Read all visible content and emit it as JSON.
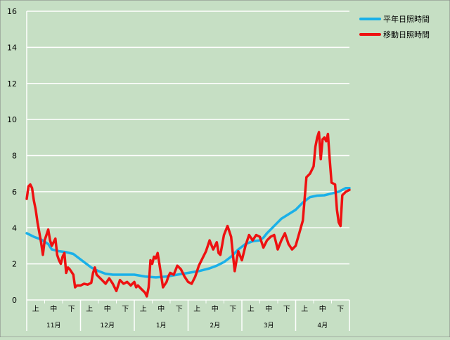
{
  "chart_data": {
    "type": "line",
    "title": "",
    "xlabel": "",
    "ylabel": "",
    "ylim": [
      0,
      16
    ],
    "yticks": [
      0,
      2,
      4,
      6,
      8,
      10,
      12,
      14,
      16
    ],
    "grid": true,
    "legend_position": "top-right",
    "months": [
      "11月",
      "12月",
      "1月",
      "2月",
      "3月",
      "4月"
    ],
    "decades": [
      "上",
      "中",
      "下"
    ],
    "series": [
      {
        "name": "平年日照時間",
        "color": "#1ab0e8",
        "points": [
          [
            0,
            3.7
          ],
          [
            2,
            3.5
          ],
          [
            4,
            3.35
          ],
          [
            6,
            3.1
          ],
          [
            7,
            2.8
          ],
          [
            9,
            2.7
          ],
          [
            11,
            2.65
          ],
          [
            13,
            2.55
          ],
          [
            14,
            2.4
          ],
          [
            16,
            2.1
          ],
          [
            18,
            1.8
          ],
          [
            20,
            1.6
          ],
          [
            22,
            1.45
          ],
          [
            24,
            1.4
          ],
          [
            27,
            1.4
          ],
          [
            30,
            1.4
          ],
          [
            33,
            1.3
          ],
          [
            36,
            1.25
          ],
          [
            39,
            1.3
          ],
          [
            42,
            1.4
          ],
          [
            45,
            1.5
          ],
          [
            48,
            1.6
          ],
          [
            51,
            1.75
          ],
          [
            53,
            1.9
          ],
          [
            55,
            2.1
          ],
          [
            57,
            2.4
          ],
          [
            59,
            2.8
          ],
          [
            61,
            3.1
          ],
          [
            63,
            3.25
          ],
          [
            65,
            3.3
          ],
          [
            66,
            3.45
          ],
          [
            67,
            3.7
          ],
          [
            69,
            4.1
          ],
          [
            71,
            4.5
          ],
          [
            73,
            4.75
          ],
          [
            75,
            5.0
          ],
          [
            77,
            5.4
          ],
          [
            79,
            5.7
          ],
          [
            81,
            5.78
          ],
          [
            83,
            5.8
          ],
          [
            85,
            5.9
          ],
          [
            87,
            6.0
          ],
          [
            89,
            6.2
          ],
          [
            90,
            6.2
          ]
        ]
      },
      {
        "name": "移動日照時間",
        "color": "#ee1111",
        "points": [
          [
            0,
            5.6
          ],
          [
            0.5,
            6.3
          ],
          [
            1,
            6.4
          ],
          [
            1.5,
            6.2
          ],
          [
            2,
            5.5
          ],
          [
            2.5,
            5.0
          ],
          [
            3,
            4.3
          ],
          [
            4,
            3.2
          ],
          [
            4.5,
            2.5
          ],
          [
            5,
            3.3
          ],
          [
            6,
            3.9
          ],
          [
            6.5,
            3.3
          ],
          [
            7,
            3.0
          ],
          [
            8,
            3.4
          ],
          [
            8.5,
            2.5
          ],
          [
            9,
            2.2
          ],
          [
            9.5,
            2.0
          ],
          [
            10,
            2.4
          ],
          [
            10.5,
            2.6
          ],
          [
            11,
            1.5
          ],
          [
            11.5,
            1.8
          ],
          [
            12,
            1.7
          ],
          [
            13,
            1.4
          ],
          [
            13.5,
            0.7
          ],
          [
            14,
            0.8
          ],
          [
            15,
            0.8
          ],
          [
            16,
            0.9
          ],
          [
            17,
            0.85
          ],
          [
            18,
            0.95
          ],
          [
            18.5,
            1.5
          ],
          [
            19,
            1.8
          ],
          [
            19.5,
            1.4
          ],
          [
            20,
            1.3
          ],
          [
            21,
            1.1
          ],
          [
            22,
            0.9
          ],
          [
            23,
            1.2
          ],
          [
            24,
            0.9
          ],
          [
            25,
            0.5
          ],
          [
            26,
            1.1
          ],
          [
            27,
            0.9
          ],
          [
            28,
            1.0
          ],
          [
            29,
            0.8
          ],
          [
            30,
            1.0
          ],
          [
            30.5,
            0.7
          ],
          [
            31,
            0.8
          ],
          [
            32,
            0.6
          ],
          [
            33,
            0.4
          ],
          [
            33.5,
            0.2
          ],
          [
            34,
            0.7
          ],
          [
            34.5,
            2.2
          ],
          [
            35,
            2.0
          ],
          [
            35.5,
            2.4
          ],
          [
            36,
            2.3
          ],
          [
            36.5,
            2.6
          ],
          [
            37,
            2.0
          ],
          [
            38,
            0.7
          ],
          [
            39,
            1.0
          ],
          [
            39.5,
            1.3
          ],
          [
            40,
            1.5
          ],
          [
            41,
            1.4
          ],
          [
            42,
            1.9
          ],
          [
            43,
            1.7
          ],
          [
            44,
            1.3
          ],
          [
            45,
            1.0
          ],
          [
            46,
            0.9
          ],
          [
            47,
            1.3
          ],
          [
            48,
            1.9
          ],
          [
            49,
            2.3
          ],
          [
            50,
            2.7
          ],
          [
            51,
            3.3
          ],
          [
            52,
            2.8
          ],
          [
            53,
            3.2
          ],
          [
            53.5,
            2.6
          ],
          [
            54,
            2.5
          ],
          [
            55,
            3.6
          ],
          [
            56,
            4.1
          ],
          [
            57,
            3.5
          ],
          [
            57.5,
            2.5
          ],
          [
            58,
            1.6
          ],
          [
            58.5,
            2.2
          ],
          [
            59,
            2.7
          ],
          [
            60,
            2.2
          ],
          [
            61,
            3.0
          ],
          [
            62,
            3.6
          ],
          [
            63,
            3.3
          ],
          [
            64,
            3.6
          ],
          [
            65,
            3.5
          ],
          [
            66,
            2.9
          ],
          [
            67,
            3.3
          ],
          [
            68,
            3.5
          ],
          [
            69,
            3.6
          ],
          [
            70,
            2.8
          ],
          [
            71,
            3.3
          ],
          [
            72,
            3.7
          ],
          [
            73,
            3.1
          ],
          [
            74,
            2.8
          ],
          [
            75,
            3.0
          ],
          [
            76,
            3.7
          ],
          [
            77,
            4.4
          ],
          [
            78,
            6.8
          ],
          [
            79,
            7.0
          ],
          [
            80,
            7.4
          ],
          [
            80.5,
            8.5
          ],
          [
            81,
            9.0
          ],
          [
            81.5,
            9.3
          ],
          [
            82,
            7.8
          ],
          [
            82.5,
            8.9
          ],
          [
            83,
            9.0
          ],
          [
            83.5,
            8.8
          ],
          [
            84,
            9.2
          ],
          [
            84.5,
            7.8
          ],
          [
            85,
            6.5
          ],
          [
            86,
            6.4
          ],
          [
            86.5,
            5.0
          ],
          [
            87,
            4.3
          ],
          [
            87.5,
            4.1
          ],
          [
            88,
            5.8
          ],
          [
            89,
            6.0
          ],
          [
            90,
            6.1
          ]
        ]
      }
    ]
  }
}
